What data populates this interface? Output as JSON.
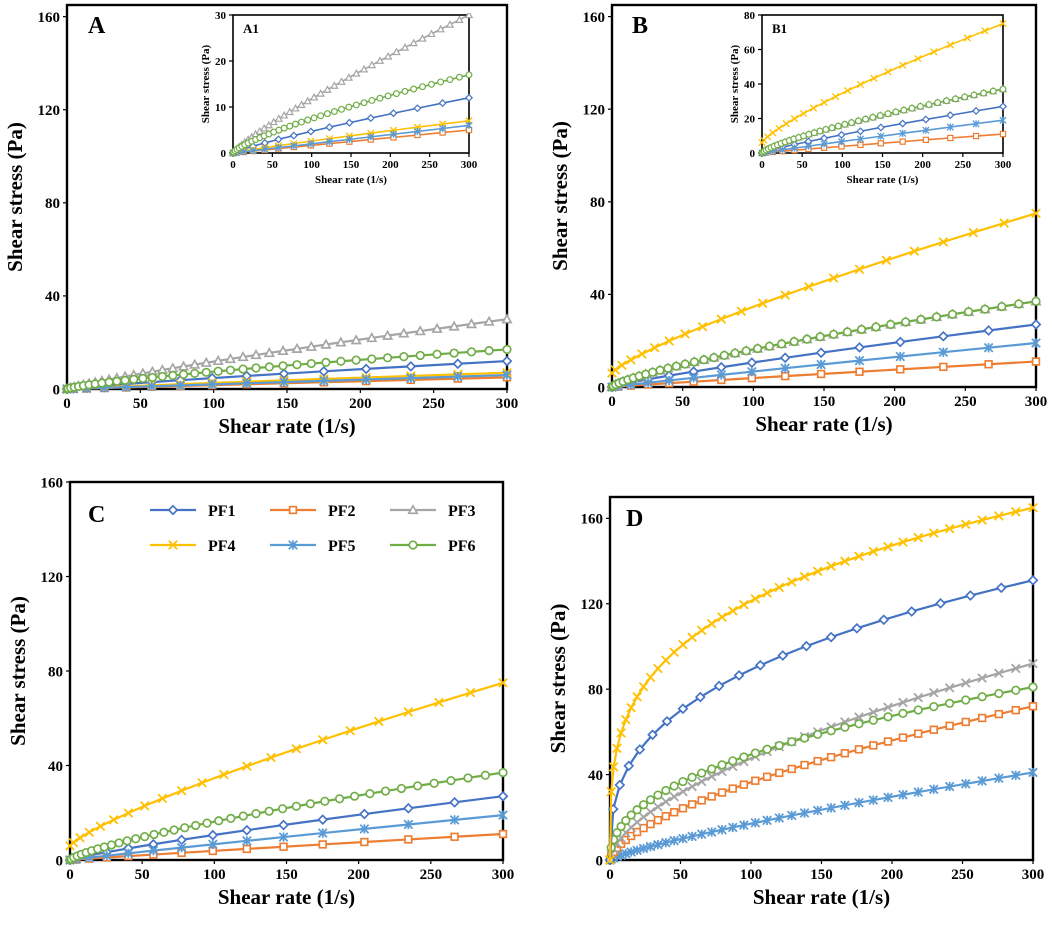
{
  "colors": {
    "PF1": "#4472C4",
    "PF2": "#ED7D31",
    "PF3": "#A5A5A5",
    "PF4": "#FFC000",
    "PF5": "#5B9BD5",
    "PF6": "#70AD47"
  },
  "chart_data": [
    {
      "id": "A",
      "type": "line",
      "panel_label": "A",
      "xlabel": "Shear rate (1/s)",
      "ylabel": "Shear  stress (Pa)",
      "xlim": [
        0,
        300
      ],
      "ylim": [
        0,
        165
      ],
      "xticks": [
        0,
        50,
        100,
        150,
        200,
        250,
        300
      ],
      "yticks": [
        0,
        40,
        80,
        120,
        160
      ],
      "series": [
        {
          "name": "PF1",
          "marker": "diamond",
          "n": 15,
          "x0": 0,
          "y0": 0,
          "y300": 12,
          "p": 0.85
        },
        {
          "name": "PF2",
          "marker": "square",
          "n": 15,
          "x0": 0,
          "y0": 0,
          "y300": 5,
          "p": 1.0
        },
        {
          "name": "PF3",
          "marker": "triangle",
          "n": 40,
          "x0": 0,
          "y0": 0,
          "y300": 30,
          "p": 0.85
        },
        {
          "name": "PF4",
          "marker": "x",
          "n": 15,
          "x0": 0,
          "y0": 0,
          "y300": 7,
          "p": 0.9
        },
        {
          "name": "PF5",
          "marker": "star",
          "n": 15,
          "x0": 0,
          "y0": 0,
          "y300": 6,
          "p": 1.0
        },
        {
          "name": "PF6",
          "marker": "circle",
          "n": 40,
          "x0": 0,
          "y0": 0,
          "y300": 17,
          "p": 0.75
        }
      ]
    },
    {
      "id": "A1",
      "type": "line",
      "panel_label": "A1",
      "xlabel": "Shear rate (1/s)",
      "ylabel": "Shear stress (Pa)",
      "xlim": [
        0,
        300
      ],
      "ylim": [
        0,
        30
      ],
      "xticks": [
        0,
        50,
        100,
        150,
        200,
        250,
        300
      ],
      "yticks": [
        0,
        10,
        20,
        30
      ],
      "series": [
        {
          "name": "PF1",
          "marker": "diamond",
          "n": 15,
          "x0": 0,
          "y0": 0,
          "y300": 12,
          "p": 0.85
        },
        {
          "name": "PF2",
          "marker": "square",
          "n": 15,
          "x0": 0,
          "y0": 0,
          "y300": 5,
          "p": 1.0
        },
        {
          "name": "PF3",
          "marker": "triangle",
          "n": 40,
          "x0": 0,
          "y0": 0,
          "y300": 30,
          "p": 0.85
        },
        {
          "name": "PF4",
          "marker": "x",
          "n": 15,
          "x0": 0,
          "y0": 0,
          "y300": 7,
          "p": 0.9
        },
        {
          "name": "PF5",
          "marker": "star",
          "n": 15,
          "x0": 0,
          "y0": 0,
          "y300": 6,
          "p": 1.0
        },
        {
          "name": "PF6",
          "marker": "circle",
          "n": 40,
          "x0": 0,
          "y0": 0,
          "y300": 17,
          "p": 0.75
        }
      ]
    },
    {
      "id": "B",
      "type": "line",
      "panel_label": "B",
      "xlabel": "Shear rate (1/s)",
      "ylabel": "Shear  stress (Pa)",
      "xlim": [
        0,
        300
      ],
      "ylim": [
        0,
        165
      ],
      "xticks": [
        0,
        50,
        100,
        150,
        200,
        250,
        300
      ],
      "yticks": [
        0,
        40,
        80,
        120,
        160
      ],
      "series": [
        {
          "name": "PF1",
          "marker": "diamond",
          "n": 15,
          "x0": 0,
          "y0": 0,
          "y300": 27,
          "p": 0.85
        },
        {
          "name": "PF2",
          "marker": "square",
          "n": 15,
          "x0": 0,
          "y0": 0,
          "y300": 11,
          "p": 0.95
        },
        {
          "name": "PF3",
          "marker": "triangle",
          "n": 40,
          "x0": 0,
          "y0": 0,
          "y300": 37,
          "p": 0.75
        },
        {
          "name": "PF5",
          "marker": "star",
          "n": 15,
          "x0": 0,
          "y0": 0,
          "y300": 19,
          "p": 0.95
        },
        {
          "name": "PF6",
          "marker": "circle",
          "n": 40,
          "x0": 0,
          "y0": 0,
          "y300": 37,
          "p": 0.75
        },
        {
          "name": "PF4",
          "marker": "x",
          "n": 22,
          "x0": 0,
          "y0": 6,
          "y300": 75,
          "p": 0.8
        }
      ]
    },
    {
      "id": "B1",
      "type": "line",
      "panel_label": "B1",
      "xlabel": "Shear rate (1/s)",
      "ylabel": "Shear stress (Pa)",
      "xlim": [
        0,
        300
      ],
      "ylim": [
        0,
        80
      ],
      "xticks": [
        0,
        50,
        100,
        150,
        200,
        250,
        300
      ],
      "yticks": [
        0,
        20,
        40,
        60,
        80
      ],
      "series": [
        {
          "name": "PF1",
          "marker": "diamond",
          "n": 15,
          "x0": 0,
          "y0": 0,
          "y300": 27,
          "p": 0.85
        },
        {
          "name": "PF2",
          "marker": "square",
          "n": 15,
          "x0": 0,
          "y0": 0,
          "y300": 11,
          "p": 0.95
        },
        {
          "name": "PF3",
          "marker": "triangle",
          "n": 40,
          "x0": 0,
          "y0": 0,
          "y300": 37,
          "p": 0.75
        },
        {
          "name": "PF5",
          "marker": "star",
          "n": 15,
          "x0": 0,
          "y0": 0,
          "y300": 19,
          "p": 0.95
        },
        {
          "name": "PF6",
          "marker": "circle",
          "n": 40,
          "x0": 0,
          "y0": 0,
          "y300": 37,
          "p": 0.75
        },
        {
          "name": "PF4",
          "marker": "x",
          "n": 22,
          "x0": 0,
          "y0": 6,
          "y300": 75,
          "p": 0.8
        }
      ]
    },
    {
      "id": "C",
      "type": "line",
      "panel_label": "C",
      "xlabel": "Shear rate (1/s)",
      "ylabel": "Shear stress (Pa)",
      "xlim": [
        0,
        300
      ],
      "ylim": [
        0,
        160
      ],
      "xticks": [
        0,
        50,
        100,
        150,
        200,
        250,
        300
      ],
      "yticks": [
        0,
        40,
        80,
        120,
        160
      ],
      "legend": [
        "PF1",
        "PF2",
        "PF3",
        "PF4",
        "PF5",
        "PF6"
      ],
      "legend_position": "top",
      "series": [
        {
          "name": "PF1",
          "marker": "diamond",
          "n": 15,
          "x0": 0,
          "y0": 0,
          "y300": 27,
          "p": 0.85
        },
        {
          "name": "PF2",
          "marker": "square",
          "n": 15,
          "x0": 0,
          "y0": 0,
          "y300": 11,
          "p": 0.95
        },
        {
          "name": "PF5",
          "marker": "star",
          "n": 15,
          "x0": 0,
          "y0": 0,
          "y300": 19,
          "p": 0.95
        },
        {
          "name": "PF6",
          "marker": "circle",
          "n": 40,
          "x0": 0,
          "y0": 0,
          "y300": 37,
          "p": 0.75
        },
        {
          "name": "PF4",
          "marker": "x",
          "n": 22,
          "x0": 0,
          "y0": 6,
          "y300": 75,
          "p": 0.8
        }
      ]
    },
    {
      "id": "D",
      "type": "line",
      "panel_label": "D",
      "xlabel": "Shear rate (1/s)",
      "ylabel": "Shear stress (Pa)",
      "xlim": [
        0,
        300
      ],
      "ylim": [
        0,
        170
      ],
      "xticks": [
        0,
        50,
        100,
        150,
        200,
        250,
        300
      ],
      "yticks": [
        0,
        40,
        80,
        120,
        160
      ],
      "series": [
        {
          "name": "PF5",
          "marker": "star",
          "n": 40,
          "x0": 0,
          "y0": 0,
          "y300": 41,
          "p": 0.8
        },
        {
          "name": "PF2",
          "marker": "square",
          "n": 40,
          "x0": 0,
          "y0": 0,
          "y300": 72,
          "p": 0.62
        },
        {
          "name": "PF3",
          "marker": "x",
          "n": 40,
          "x0": 0,
          "y0": 0,
          "y300": 92,
          "p": 0.6
        },
        {
          "name": "PF6",
          "marker": "circle",
          "n": 40,
          "x0": 0,
          "y0": 0,
          "y300": 81,
          "p": 0.45
        },
        {
          "name": "PF1",
          "marker": "diamond",
          "n": 22,
          "x0": 0,
          "y0": 0,
          "y300": 131,
          "p": 0.35
        },
        {
          "name": "PF4",
          "marker": "x",
          "n": 40,
          "x0": 0,
          "y0": 0,
          "y300": 165,
          "p": 0.28
        }
      ]
    }
  ]
}
